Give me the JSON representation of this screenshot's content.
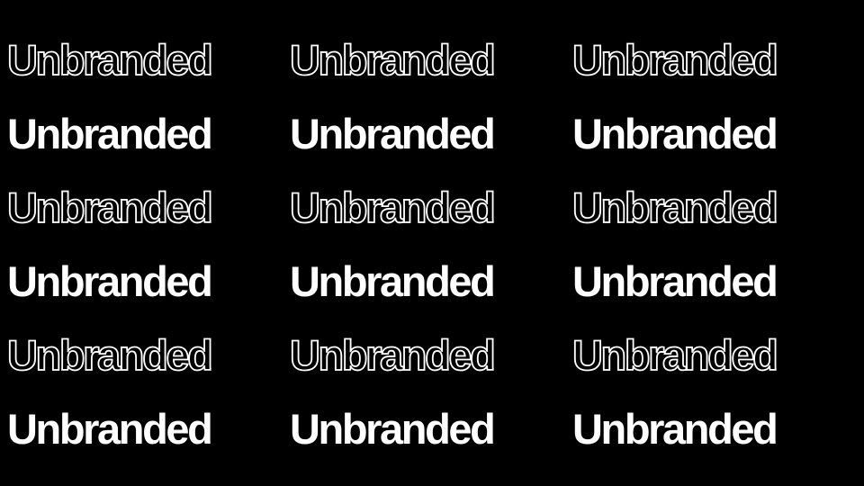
{
  "text": {
    "word": "Unbranded"
  },
  "colors": {
    "background": "#000000",
    "foreground": "#ffffff"
  },
  "pattern": {
    "rows": [
      {
        "style": "outline",
        "repeats": 3
      },
      {
        "style": "solid",
        "repeats": 3
      },
      {
        "style": "outline",
        "repeats": 3
      },
      {
        "style": "solid",
        "repeats": 3
      },
      {
        "style": "outline",
        "repeats": 3
      },
      {
        "style": "solid",
        "repeats": 3
      }
    ]
  }
}
